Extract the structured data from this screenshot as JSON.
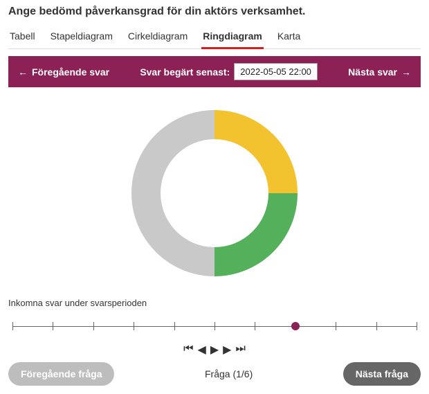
{
  "title": "Ange bedömd påverkansgrad för din aktörs verksamhet.",
  "tabs": {
    "items": [
      {
        "label": "Tabell"
      },
      {
        "label": "Stapeldiagram"
      },
      {
        "label": "Cirkeldiagram"
      },
      {
        "label": "Ringdiagram"
      },
      {
        "label": "Karta"
      }
    ],
    "activeIndex": 3
  },
  "navbar": {
    "prev": "Föregående svar",
    "deadlineLabel": "Svar begärt senast:",
    "deadlineValue": "2022-05-05 22:00",
    "next": "Nästa svar",
    "bgColor": "#8c2156"
  },
  "donut": {
    "type": "donut",
    "size": 270,
    "outerRadius": 120,
    "innerRadius": 78,
    "startAngle": -90,
    "slices": [
      {
        "value": 25,
        "color": "#f2c32f"
      },
      {
        "value": 25,
        "color": "#54b05a"
      },
      {
        "value": 50,
        "color": "#c9c9c9"
      }
    ],
    "bgColor": "#ffffff"
  },
  "subtitle": "Inkomna svar under svarsperioden",
  "timeline": {
    "ticks": 11,
    "markerPos": 0.7,
    "markerColor": "#8c2156"
  },
  "controls": {
    "first": "⏮",
    "prev": "◀",
    "play": "▶",
    "next": "▶",
    "last": "⏭"
  },
  "footer": {
    "prevBtn": "Föregående fråga",
    "counter": "Fråga (1/6)",
    "nextBtn": "Nästa fråga"
  }
}
